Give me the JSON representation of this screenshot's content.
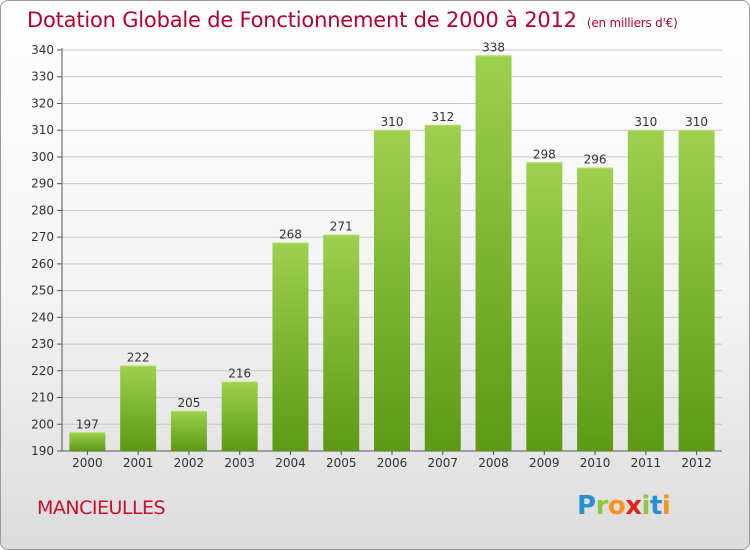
{
  "header": {
    "title": "Dotation Globale de Fonctionnement de 2000 à 2012",
    "unit": "(en milliers d'€)"
  },
  "footer": {
    "commune": "MANCIEULLES",
    "logo_text": "Proxiti"
  },
  "colors": {
    "title": "#b8002e",
    "bar_light": "#9dd04e",
    "bar_dark": "#5c9a14",
    "grid": "#c8c8c8"
  },
  "chart_data": {
    "type": "bar",
    "title": "Dotation Globale de Fonctionnement de 2000 à 2012",
    "subtitle": "(en milliers d'€)",
    "xlabel": "",
    "ylabel": "",
    "categories": [
      "2000",
      "2001",
      "2002",
      "2003",
      "2004",
      "2005",
      "2006",
      "2007",
      "2008",
      "2009",
      "2010",
      "2011",
      "2012"
    ],
    "values": [
      197,
      222,
      205,
      216,
      268,
      271,
      310,
      312,
      338,
      298,
      296,
      310,
      310
    ],
    "ylim": [
      190,
      340
    ],
    "yticks": [
      190,
      200,
      210,
      220,
      230,
      240,
      250,
      260,
      270,
      280,
      290,
      300,
      310,
      320,
      330,
      340
    ],
    "grid": true,
    "legend": "none"
  }
}
